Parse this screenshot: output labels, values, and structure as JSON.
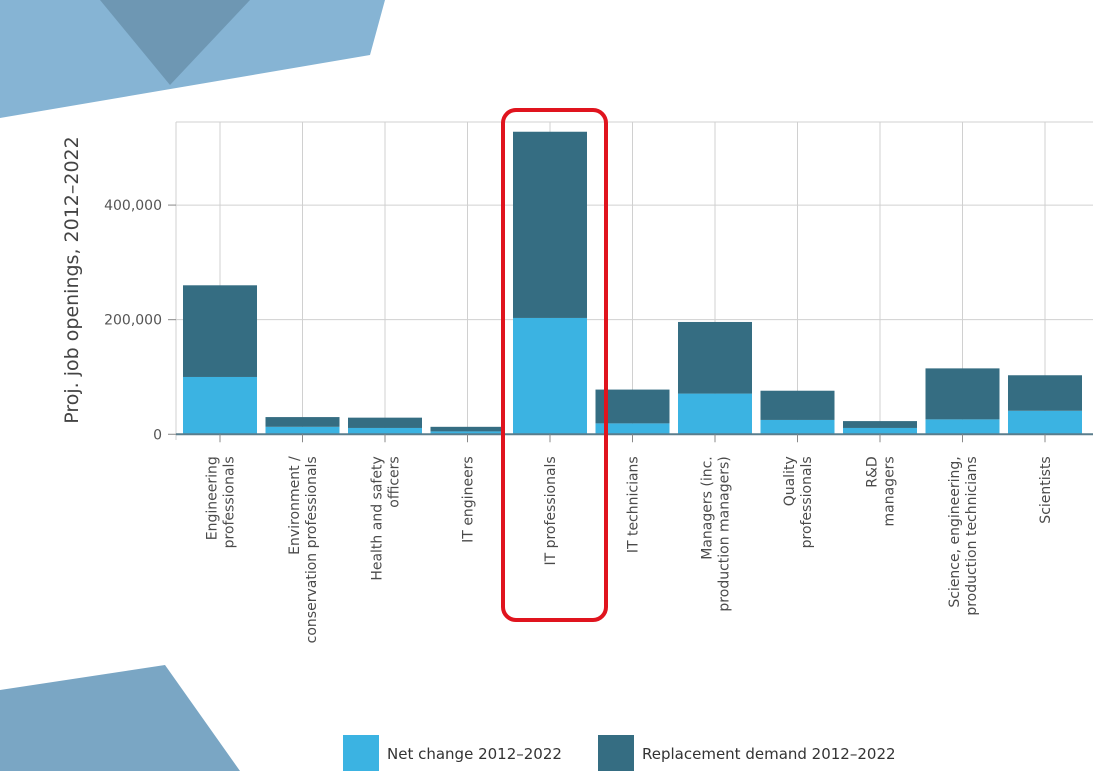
{
  "colors": {
    "net_change": "#3bb3e2",
    "replacement": "#356d82",
    "highlight": "#e0141e",
    "grid": "#d0d0d0",
    "shape_light": "#86b4d4",
    "shape_dark": "#6e97b3"
  },
  "chart_data": {
    "type": "bar",
    "stacked": true,
    "title": "",
    "xlabel": "",
    "ylabel": "Proj. job openings, 2012–2022",
    "ylim": [
      -10000,
      545000
    ],
    "yticks": [
      {
        "value": 0,
        "label": "0"
      },
      {
        "value": 200000,
        "label": "200,000"
      },
      {
        "value": 400000,
        "label": "400,000"
      }
    ],
    "categories": [
      [
        "Engineering",
        "professionals"
      ],
      [
        "Environment /",
        "conservation professionals"
      ],
      [
        "Health and safety",
        "officers"
      ],
      [
        "IT engineers"
      ],
      [
        "IT professionals"
      ],
      [
        "IT technicians"
      ],
      [
        "Managers (inc.",
        "production managers)"
      ],
      [
        "Quality",
        "professionals"
      ],
      [
        "R&D",
        "managers"
      ],
      [
        "Science, engineering,",
        "production technicians"
      ],
      [
        "Scientists"
      ]
    ],
    "series": [
      {
        "name": "Net change 2012–2022",
        "color": "#3bb3e2",
        "values": [
          100000,
          13000,
          11000,
          5000,
          203000,
          19000,
          71000,
          25000,
          11000,
          26000,
          41000
        ]
      },
      {
        "name": "Replacement demand 2012–2022",
        "color": "#356d82",
        "values": [
          160000,
          17000,
          18000,
          8000,
          325000,
          59000,
          125000,
          51000,
          12000,
          89000,
          62000
        ]
      }
    ],
    "highlighted_category": "IT professionals",
    "grid": true,
    "legend_position": "bottom"
  }
}
